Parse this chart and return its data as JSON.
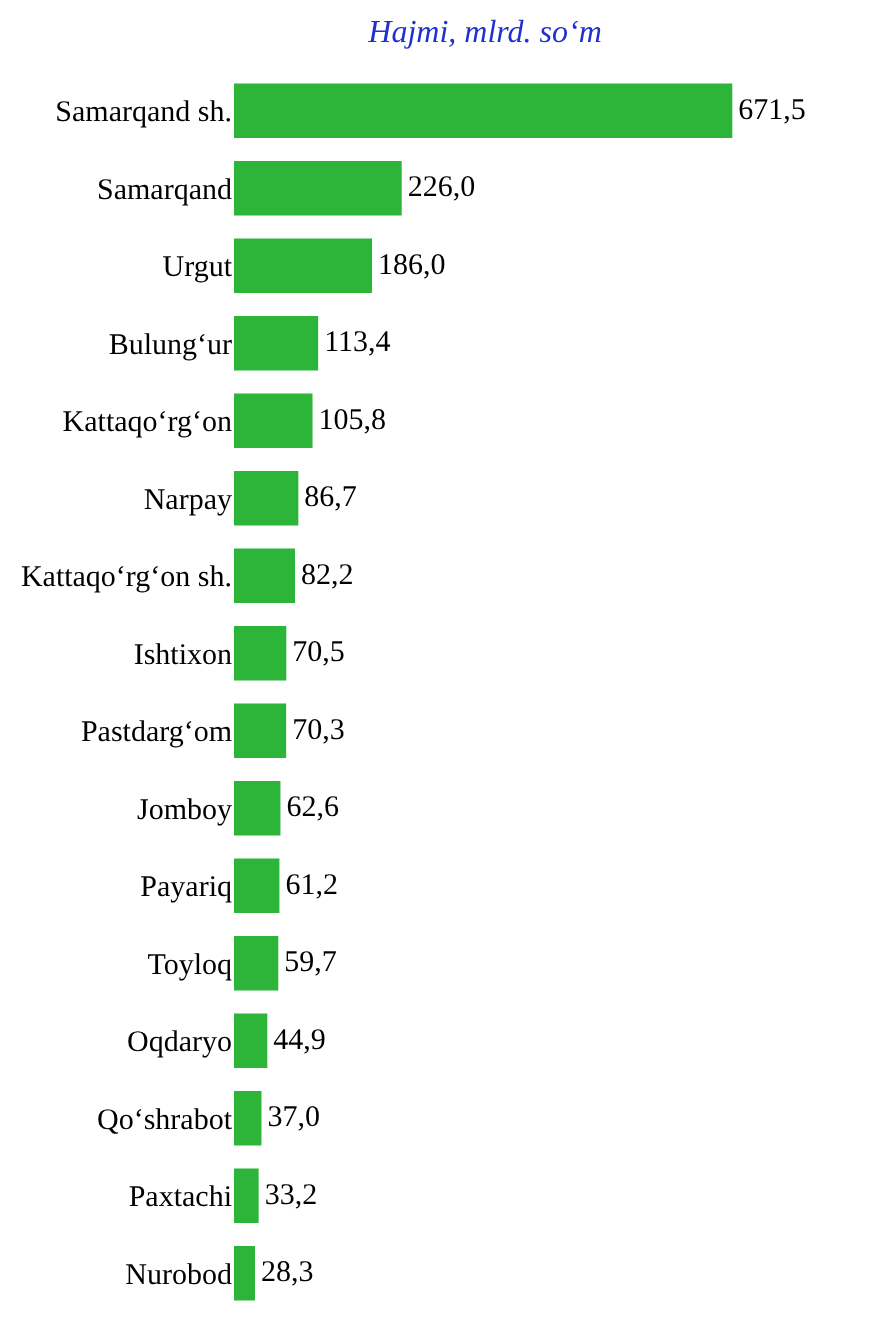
{
  "chart_data": {
    "type": "bar",
    "orientation": "horizontal",
    "title": "Hajmi, mlrd. so‘m",
    "color": "#2db53a",
    "categories": [
      "Samarqand sh.",
      "Samarqand",
      "Urgut",
      "Bulung‘ur",
      "Kattaqo‘rg‘on",
      "Narpay",
      "Kattaqo‘rg‘on sh.",
      "Ishtixon",
      "Pastdarg‘om",
      "Jomboy",
      "Payariq",
      "Toyloq",
      "Oqdaryo",
      "Qo‘shrabot",
      "Paxtachi",
      "Nurobod"
    ],
    "values": [
      671.5,
      226.0,
      186.0,
      113.4,
      105.8,
      86.7,
      82.2,
      70.5,
      70.3,
      62.6,
      61.2,
      59.7,
      44.9,
      37.0,
      33.2,
      28.3
    ],
    "value_labels": [
      "671,5",
      "226,0",
      "186,0",
      "113,4",
      "105,8",
      "86,7",
      "82,2",
      "70,5",
      "70,3",
      "62,6",
      "61,2",
      "59,7",
      "44,9",
      "37,0",
      "33,2",
      "28,3"
    ],
    "legend": false
  }
}
